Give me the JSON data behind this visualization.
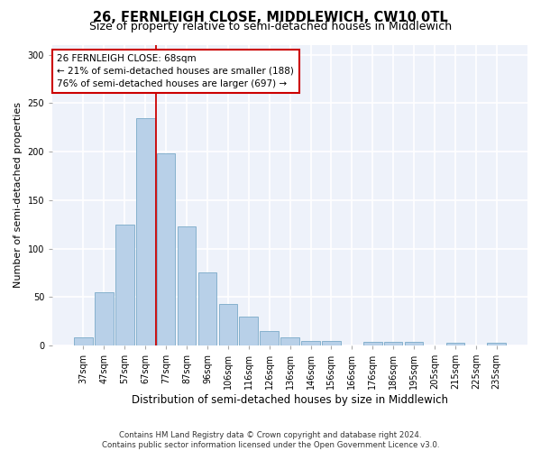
{
  "title": "26, FERNLEIGH CLOSE, MIDDLEWICH, CW10 0TL",
  "subtitle": "Size of property relative to semi-detached houses in Middlewich",
  "xlabel": "Distribution of semi-detached houses by size in Middlewich",
  "ylabel": "Number of semi-detached properties",
  "categories": [
    "37sqm",
    "47sqm",
    "57sqm",
    "67sqm",
    "77sqm",
    "87sqm",
    "96sqm",
    "106sqm",
    "116sqm",
    "126sqm",
    "136sqm",
    "146sqm",
    "156sqm",
    "166sqm",
    "176sqm",
    "186sqm",
    "195sqm",
    "205sqm",
    "215sqm",
    "225sqm",
    "235sqm"
  ],
  "values": [
    8,
    55,
    125,
    235,
    198,
    123,
    75,
    43,
    30,
    15,
    8,
    5,
    5,
    0,
    4,
    4,
    4,
    0,
    3,
    0,
    3
  ],
  "bar_color": "#b8d0e8",
  "bar_edge_color": "#7aaac8",
  "background_color": "#eef2fa",
  "grid_color": "#ffffff",
  "vline_x": 3.5,
  "vline_color": "#cc0000",
  "annotation_text": "26 FERNLEIGH CLOSE: 68sqm\n← 21% of semi-detached houses are smaller (188)\n76% of semi-detached houses are larger (697) →",
  "annotation_box_color": "#ffffff",
  "annotation_box_edge": "#cc0000",
  "ylim": [
    0,
    310
  ],
  "yticks": [
    0,
    50,
    100,
    150,
    200,
    250,
    300
  ],
  "footer": "Contains HM Land Registry data © Crown copyright and database right 2024.\nContains public sector information licensed under the Open Government Licence v3.0.",
  "title_fontsize": 10.5,
  "subtitle_fontsize": 9,
  "xlabel_fontsize": 8.5,
  "ylabel_fontsize": 8,
  "tick_fontsize": 7,
  "annot_fontsize": 7.5
}
